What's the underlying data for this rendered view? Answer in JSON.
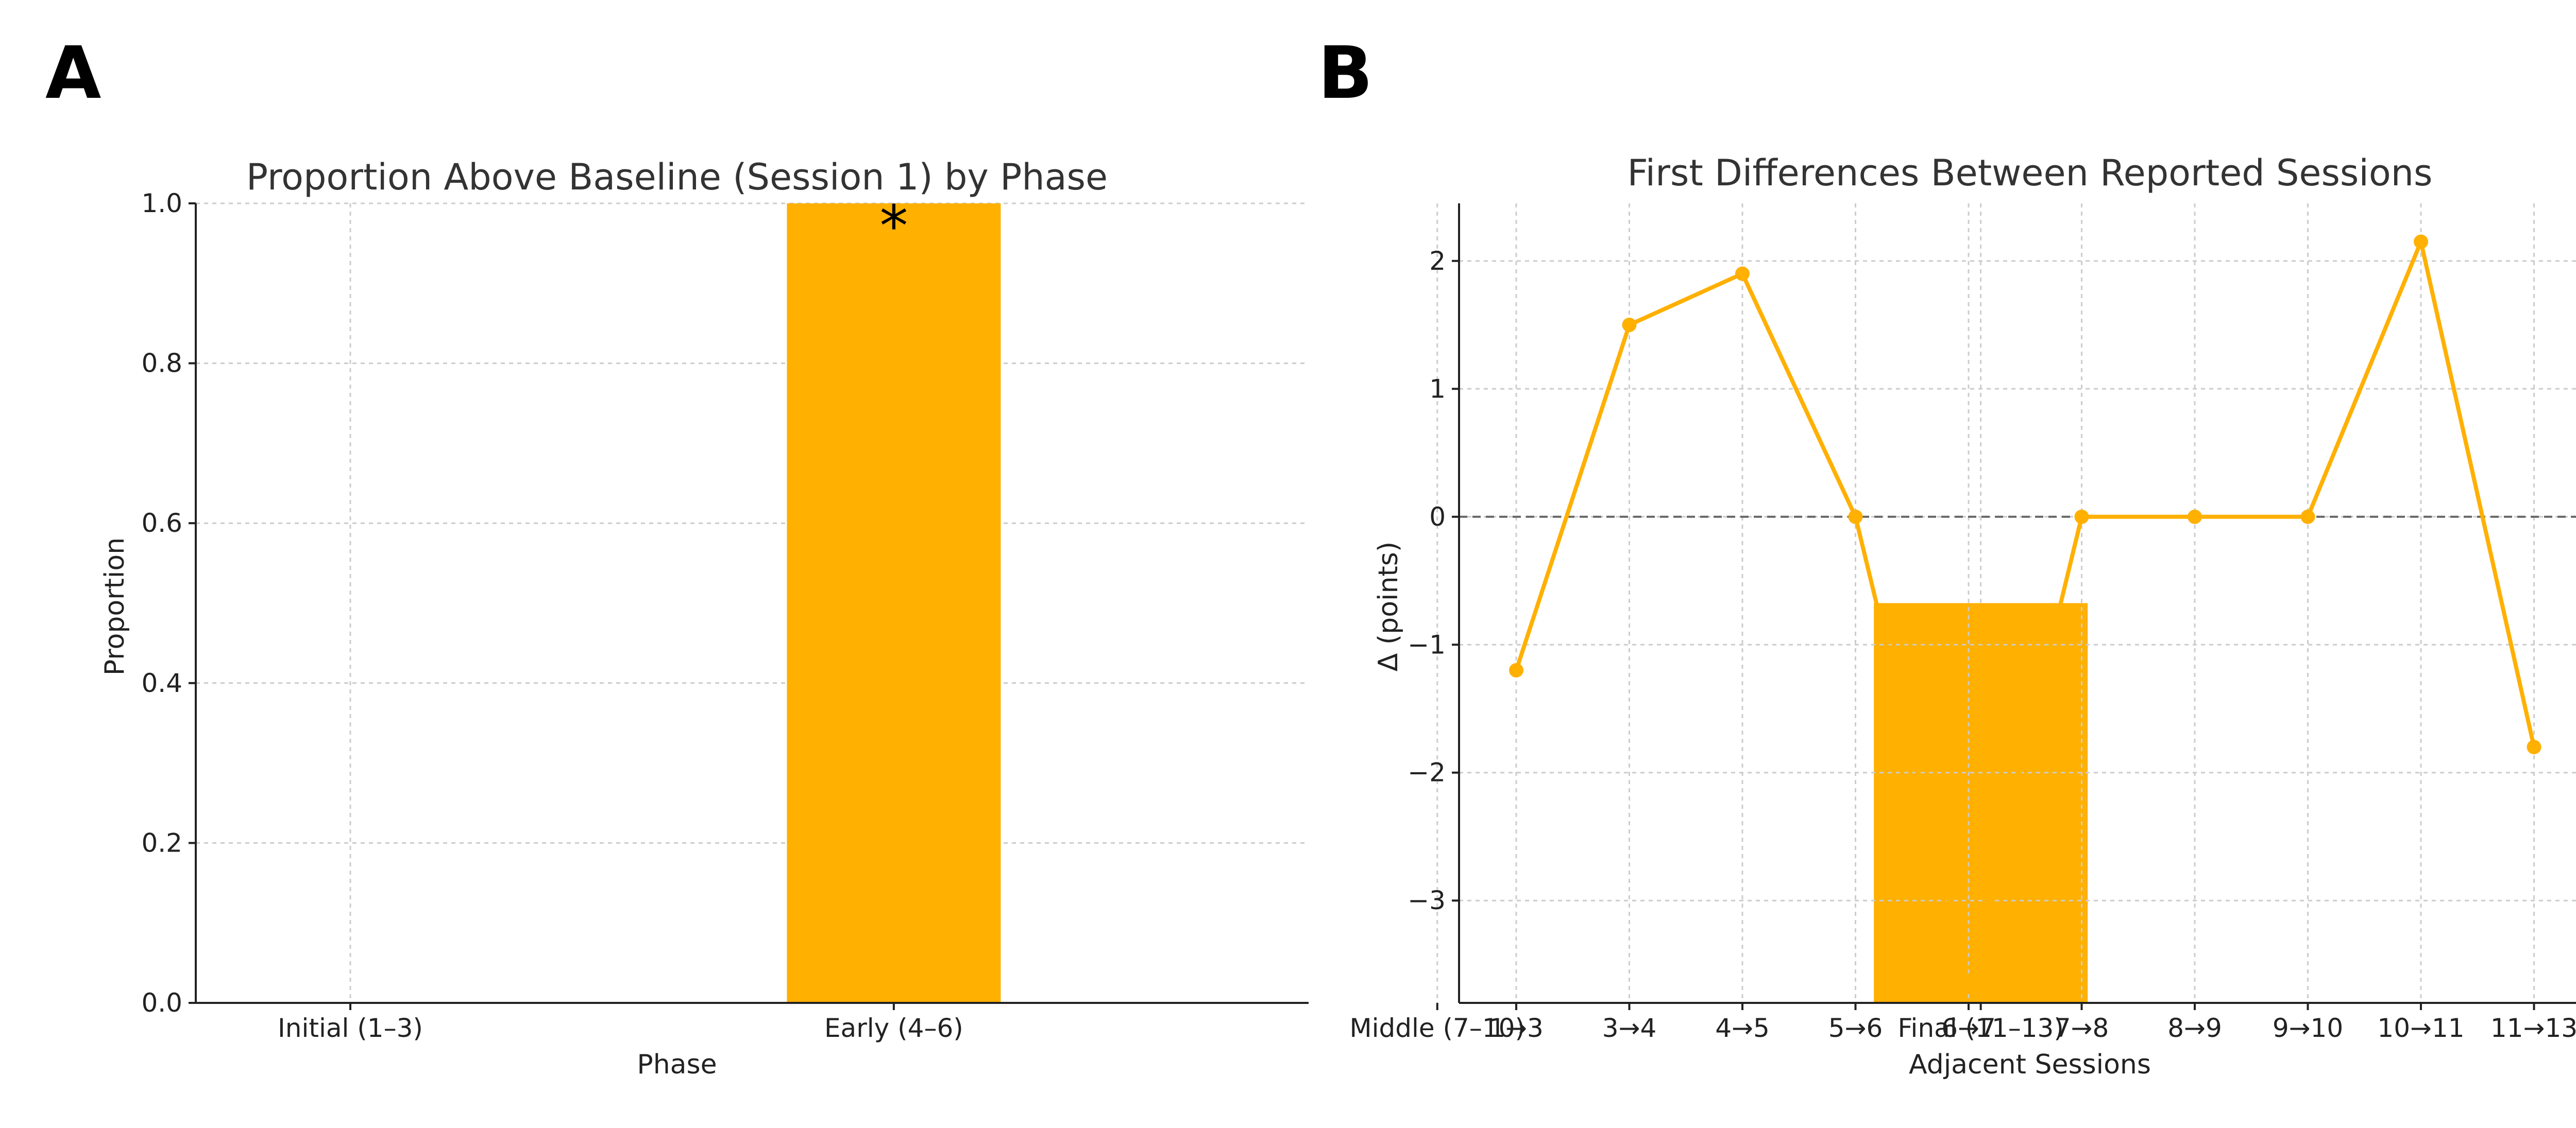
{
  "chart_data": [
    {
      "panel": "A",
      "type": "bar",
      "title": "Proportion Above Baseline (Session 1) by Phase",
      "xlabel": "Phase",
      "ylabel": "Proportion",
      "categories": [
        "Initial (1–3)",
        "Early (4–6)",
        "Middle (7–10)",
        "Final (11–13)"
      ],
      "values": [
        0.0,
        1.0,
        0.0,
        0.5
      ],
      "ylim": [
        0,
        1.0
      ],
      "yticks": [
        "0.0",
        "0.2",
        "0.4",
        "0.6",
        "0.8",
        "1.0"
      ],
      "ytick_values": [
        0.0,
        0.2,
        0.4,
        0.6,
        0.8,
        1.0
      ],
      "annotations": [
        {
          "category": "Early (4–6)",
          "text": "*"
        }
      ],
      "color": "#FFB000",
      "grid": true,
      "legend": "none"
    },
    {
      "panel": "B",
      "type": "line",
      "title": "First Differences Between Reported Sessions",
      "xlabel": "Adjacent Sessions",
      "ylabel": "Δ (points)",
      "categories": [
        "1→3",
        "3→4",
        "4→5",
        "5→6",
        "6→7",
        "7→8",
        "8→9",
        "9→10",
        "10→11",
        "11→13"
      ],
      "values": [
        -1.2,
        1.5,
        1.9,
        0.0,
        -3.65,
        0.0,
        0.0,
        0.0,
        2.15,
        -1.8
      ],
      "ylim": [
        -3.8,
        2.45
      ],
      "yticks": [
        "−3",
        "−2",
        "−1",
        "0",
        "1",
        "2"
      ],
      "ytick_values": [
        -3,
        -2,
        -1,
        0,
        1,
        2
      ],
      "reference_line": 0,
      "color": "#FFB000",
      "grid": true,
      "legend": "none"
    }
  ]
}
